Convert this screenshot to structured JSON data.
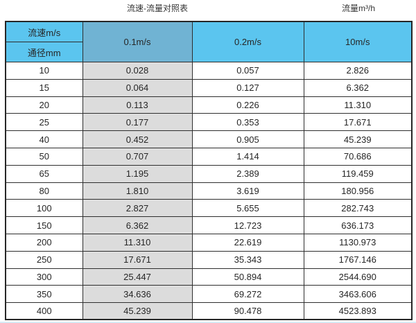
{
  "chart_data": {
    "type": "table",
    "title": "流速-流量对照表",
    "unit_label": "流量m³/h",
    "corner_labels": [
      "流速m/s",
      "通径mm"
    ],
    "velocity_headers": [
      "0.1m/s",
      "0.2m/s",
      "10m/s"
    ],
    "columns": [
      "通径mm",
      "0.1m/s",
      "0.2m/s",
      "10m/s"
    ],
    "rows": [
      [
        "10",
        "0.028",
        "0.057",
        "2.826"
      ],
      [
        "15",
        "0.064",
        "0.127",
        "6.362"
      ],
      [
        "20",
        "0.113",
        "0.226",
        "11.310"
      ],
      [
        "25",
        "0.177",
        "0.353",
        "17.671"
      ],
      [
        "40",
        "0.452",
        "0.905",
        "45.239"
      ],
      [
        "50",
        "0.707",
        "1.414",
        "70.686"
      ],
      [
        "65",
        "1.195",
        "2.389",
        "119.459"
      ],
      [
        "80",
        "1.810",
        "3.619",
        "180.956"
      ],
      [
        "100",
        "2.827",
        "5.655",
        "282.743"
      ],
      [
        "150",
        "6.362",
        "12.723",
        "636.173"
      ],
      [
        "200",
        "11.310",
        "22.619",
        "1130.973"
      ],
      [
        "250",
        "17.671",
        "35.343",
        "1767.146"
      ],
      [
        "300",
        "25.447",
        "50.894",
        "2544.690"
      ],
      [
        "350",
        "34.636",
        "69.272",
        "3463.606"
      ],
      [
        "400",
        "45.239",
        "90.478",
        "4523.893"
      ]
    ]
  },
  "colors": {
    "header_blue": "#5bc5ef",
    "header_blue_dark": "#70b3d3",
    "column_gray": "#dcdcdc",
    "border_dark": "#2e2e2e",
    "text": "#262626"
  }
}
